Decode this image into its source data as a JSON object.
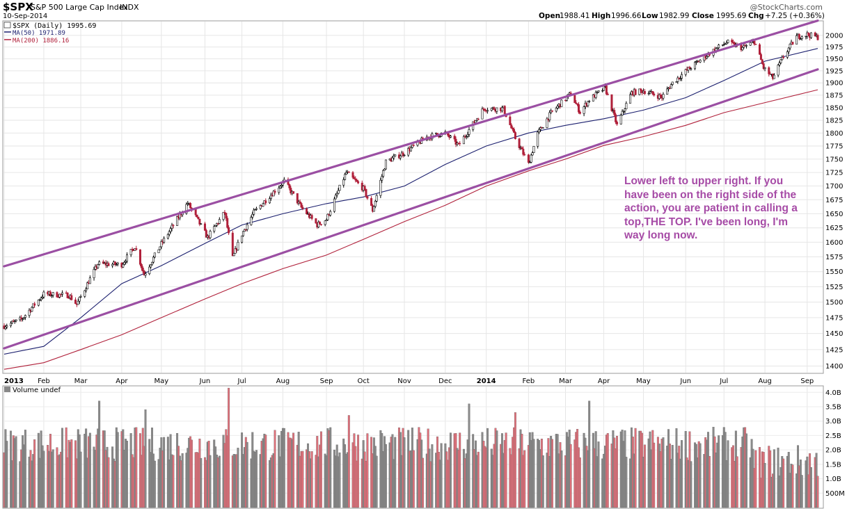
{
  "header": {
    "symbol": "$SPX",
    "name": "S&P 500 Large Cap Index",
    "exchange": "INDX",
    "date": "10-Sep-2014",
    "watermark": "@StockCharts.com",
    "open_label": "Open",
    "open": "1988.41",
    "high_label": "High",
    "high": "1996.66",
    "low_label": "Low",
    "low": "1982.99",
    "close_label": "Close",
    "close": "1995.69",
    "chg_label": "Chg",
    "chg": "+7.25 (+0.36%)"
  },
  "legend": {
    "price": "$SPX (Daily) 1995.69",
    "ma50": "MA(50) 1971.89",
    "ma200": "MA(200) 1886.16"
  },
  "annotation": {
    "line1": "Lower left to upper right.  If you",
    "line2": "have been on the right side of the",
    "line3": "action, you are patient in calling a",
    "line4": "top,THE TOP. I've been long, I'm",
    "line5": "way long now."
  },
  "volume_panel": {
    "label": "Volume undef"
  },
  "colors": {
    "up_bar": "#000000",
    "down_bar": "#b0203a",
    "ma50": "#1b1f6e",
    "ma200": "#b0203a",
    "channel": "#9b4fa3",
    "note": "#a64ba6",
    "volume_up": "#8a8a8a",
    "volume_down": "#e0707a"
  },
  "chart_data": [
    {
      "type": "line",
      "title": "$SPX S&P 500 Large Cap Index INDX",
      "y_scale": "log",
      "ylim": [
        1390,
        2030
      ],
      "y_ticks": [
        1400,
        1425,
        1450,
        1475,
        1500,
        1525,
        1550,
        1575,
        1600,
        1625,
        1650,
        1675,
        1700,
        1725,
        1750,
        1775,
        1800,
        1825,
        1850,
        1875,
        1900,
        1925,
        1950,
        1975,
        2000
      ],
      "x_tick_labels": [
        "2013",
        "Feb",
        "Mar",
        "Apr",
        "May",
        "Jun",
        "Jul",
        "Aug",
        "Sep",
        "Oct",
        "Nov",
        "Dec",
        "2014",
        "Feb",
        "Mar",
        "Apr",
        "May",
        "Jun",
        "Jul",
        "Aug",
        "Sep"
      ],
      "x_tick_dates": [
        "2013-01-02",
        "2013-02-01",
        "2013-03-01",
        "2013-04-01",
        "2013-05-01",
        "2013-06-03",
        "2013-07-01",
        "2013-08-01",
        "2013-09-03",
        "2013-10-01",
        "2013-11-01",
        "2013-12-02",
        "2014-01-02",
        "2014-02-03",
        "2014-03-03",
        "2014-04-01",
        "2014-05-01",
        "2014-06-02",
        "2014-07-01",
        "2014-08-01",
        "2014-09-02"
      ],
      "grid": true,
      "price_series": {
        "name": "$SPX (Daily)",
        "x": [
          "2013-01-02",
          "2013-01-15",
          "2013-02-01",
          "2013-02-20",
          "2013-02-26",
          "2013-03-14",
          "2013-04-01",
          "2013-04-11",
          "2013-04-18",
          "2013-05-01",
          "2013-05-21",
          "2013-06-05",
          "2013-06-18",
          "2013-06-24",
          "2013-07-01",
          "2013-07-10",
          "2013-08-02",
          "2013-08-15",
          "2013-08-27",
          "2013-09-03",
          "2013-09-18",
          "2013-10-01",
          "2013-10-08",
          "2013-10-18",
          "2013-11-01",
          "2013-11-18",
          "2013-12-02",
          "2013-12-12",
          "2013-12-31",
          "2014-01-15",
          "2014-01-24",
          "2014-02-03",
          "2014-02-10",
          "2014-02-20",
          "2014-03-07",
          "2014-03-14",
          "2014-03-21",
          "2014-04-02",
          "2014-04-11",
          "2014-04-22",
          "2014-05-01",
          "2014-05-15",
          "2014-05-23",
          "2014-06-02",
          "2014-06-20",
          "2014-07-03",
          "2014-07-15",
          "2014-07-24",
          "2014-07-31",
          "2014-08-07",
          "2014-08-15",
          "2014-08-25",
          "2014-09-02",
          "2014-09-10"
        ],
        "values": [
          1462,
          1472,
          1513,
          1511,
          1496,
          1563,
          1562,
          1593,
          1545,
          1597,
          1669,
          1608,
          1652,
          1573,
          1614,
          1652,
          1709,
          1661,
          1630,
          1640,
          1725,
          1695,
          1656,
          1745,
          1762,
          1792,
          1800,
          1776,
          1848,
          1848,
          1790,
          1741,
          1799,
          1839,
          1878,
          1841,
          1866,
          1890,
          1815,
          1880,
          1884,
          1871,
          1900,
          1924,
          1962,
          1985,
          1973,
          1987,
          1931,
          1910,
          1955,
          1997,
          2002,
          1996
        ]
      },
      "ma50": {
        "name": "MA(50)",
        "x": [
          "2013-01-02",
          "2013-02-01",
          "2013-03-01",
          "2013-04-01",
          "2013-05-01",
          "2013-06-03",
          "2013-07-01",
          "2013-08-01",
          "2013-09-03",
          "2013-10-01",
          "2013-11-01",
          "2013-12-02",
          "2014-01-02",
          "2014-02-03",
          "2014-03-03",
          "2014-04-01",
          "2014-05-01",
          "2014-06-02",
          "2014-07-01",
          "2014-08-01",
          "2014-09-10"
        ],
        "values": [
          1418,
          1430,
          1475,
          1530,
          1560,
          1598,
          1630,
          1650,
          1668,
          1680,
          1700,
          1740,
          1775,
          1800,
          1815,
          1828,
          1845,
          1870,
          1905,
          1945,
          1972
        ]
      },
      "ma200": {
        "name": "MA(200)",
        "x": [
          "2013-01-02",
          "2013-02-01",
          "2013-03-01",
          "2013-04-01",
          "2013-05-01",
          "2013-06-03",
          "2013-07-01",
          "2013-08-01",
          "2013-09-03",
          "2013-10-01",
          "2013-11-01",
          "2013-12-02",
          "2014-01-02",
          "2014-02-03",
          "2014-03-03",
          "2014-04-01",
          "2014-05-01",
          "2014-06-02",
          "2014-07-01",
          "2014-08-01",
          "2014-09-10"
        ],
        "values": [
          1395,
          1405,
          1425,
          1448,
          1475,
          1505,
          1530,
          1555,
          1578,
          1605,
          1636,
          1665,
          1700,
          1728,
          1750,
          1776,
          1793,
          1815,
          1840,
          1860,
          1886
        ]
      },
      "channel_lines": [
        {
          "name": "upper",
          "x": [
            "2013-01-02",
            "2014-09-10"
          ],
          "values": [
            1559,
            2032
          ]
        },
        {
          "name": "lower",
          "x": [
            "2013-01-02",
            "2014-09-10"
          ],
          "values": [
            1427,
            1928
          ]
        }
      ]
    },
    {
      "type": "bar",
      "title": "Volume undef",
      "ylim": [
        0,
        4200000000
      ],
      "y_ticks": [
        "500M",
        "1.0B",
        "1.5B",
        "2.0B",
        "2.5B",
        "3.0B",
        "3.5B",
        "4.0B"
      ],
      "y_tick_values": [
        500000000,
        1000000000,
        1500000000,
        2000000000,
        2500000000,
        3000000000,
        3500000000,
        4000000000
      ]
    }
  ]
}
